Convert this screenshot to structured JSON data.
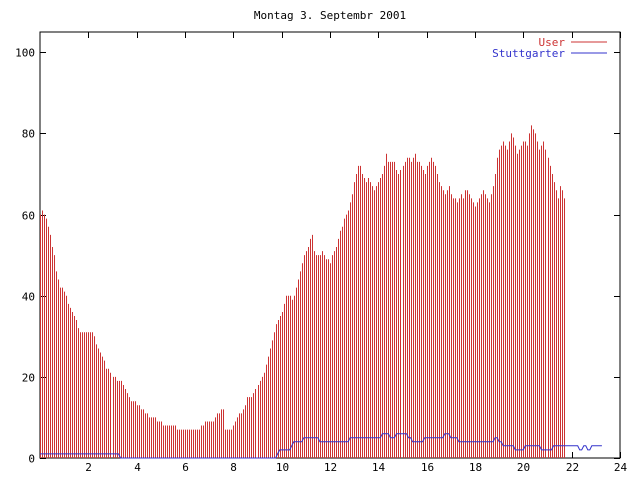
{
  "chart_data": {
    "type": "bar",
    "title": "Montag 3. Septembr 2001",
    "xlabel": "",
    "ylabel": "",
    "xlim": [
      0,
      24
    ],
    "ylim": [
      0,
      105
    ],
    "x_ticks": [
      2,
      4,
      6,
      8,
      10,
      12,
      14,
      16,
      18,
      20,
      22,
      24
    ],
    "y_ticks": [
      0,
      20,
      40,
      60,
      80,
      100
    ],
    "grid": false,
    "legend_position": "top-right",
    "sample_interval_minutes": 5,
    "series": [
      {
        "name": "User",
        "color": "#cc3333",
        "style": "impulses",
        "values": [
          60,
          61,
          60,
          59,
          57,
          55,
          52,
          50,
          46,
          44,
          42,
          42,
          41,
          40,
          38,
          37,
          36,
          35,
          34,
          32,
          31,
          31,
          31,
          31,
          31,
          31,
          31,
          30,
          28,
          27,
          26,
          25,
          24,
          22,
          22,
          21,
          20,
          20,
          19,
          19,
          19,
          18,
          17,
          16,
          15,
          14,
          14,
          14,
          13,
          13,
          12,
          12,
          11,
          11,
          10,
          10,
          10,
          10,
          9,
          9,
          9,
          8,
          8,
          8,
          8,
          8,
          8,
          8,
          7,
          7,
          7,
          7,
          7,
          7,
          7,
          7,
          7,
          7,
          7,
          7,
          8,
          8,
          9,
          9,
          9,
          9,
          9,
          10,
          11,
          11,
          12,
          12,
          7,
          7,
          7,
          7,
          8,
          9,
          10,
          11,
          11,
          12,
          13,
          15,
          15,
          15,
          16,
          17,
          18,
          19,
          20,
          21,
          23,
          25,
          27,
          29,
          31,
          33,
          34,
          35,
          36,
          38,
          40,
          40,
          40,
          39,
          40,
          42,
          44,
          46,
          48,
          50,
          51,
          52,
          54,
          55,
          51,
          50,
          50,
          50,
          51,
          50,
          49,
          49,
          48,
          50,
          51,
          52,
          54,
          56,
          57,
          59,
          60,
          61,
          63,
          65,
          68,
          70,
          72,
          72,
          70,
          69,
          68,
          69,
          68,
          67,
          66,
          67,
          68,
          69,
          70,
          72,
          75,
          73,
          73,
          73,
          73,
          71,
          70,
          71,
          72,
          73,
          74,
          74,
          73,
          74,
          75,
          73,
          73,
          72,
          71,
          70,
          72,
          73,
          74,
          73,
          72,
          70,
          68,
          67,
          66,
          65,
          66,
          67,
          65,
          64,
          64,
          63,
          64,
          65,
          64,
          66,
          66,
          65,
          64,
          63,
          62,
          63,
          64,
          65,
          66,
          65,
          64,
          63,
          65,
          67,
          70,
          74,
          76,
          77,
          78,
          77,
          76,
          78,
          80,
          79,
          77,
          75,
          76,
          77,
          78,
          78,
          77,
          80,
          82,
          81,
          80,
          78,
          76,
          77,
          78,
          76,
          74,
          72,
          70,
          68,
          66,
          64,
          67,
          66,
          64
        ]
      },
      {
        "name": "Stuttgarter",
        "color": "#3333cc",
        "style": "lines",
        "values": [
          1,
          1,
          1,
          1,
          1,
          1,
          1,
          1,
          1,
          1,
          1,
          1,
          1,
          1,
          1,
          1,
          1,
          1,
          1,
          1,
          1,
          1,
          1,
          1,
          1,
          1,
          1,
          1,
          1,
          1,
          1,
          1,
          1,
          1,
          1,
          1,
          1,
          1,
          1,
          1,
          0,
          0,
          0,
          0,
          0,
          0,
          0,
          0,
          0,
          0,
          0,
          0,
          0,
          0,
          0,
          0,
          0,
          0,
          0,
          0,
          0,
          0,
          0,
          0,
          0,
          0,
          0,
          0,
          0,
          0,
          0,
          0,
          0,
          0,
          0,
          0,
          0,
          0,
          0,
          0,
          0,
          0,
          0,
          0,
          0,
          0,
          0,
          0,
          0,
          0,
          0,
          0,
          0,
          0,
          0,
          0,
          0,
          0,
          0,
          0,
          0,
          0,
          0,
          0,
          0,
          0,
          0,
          0,
          0,
          0,
          0,
          0,
          0,
          0,
          0,
          0,
          0,
          0,
          1,
          2,
          2,
          2,
          2,
          2,
          2,
          3,
          4,
          4,
          4,
          4,
          4,
          5,
          5,
          5,
          5,
          5,
          5,
          5,
          5,
          4,
          4,
          4,
          4,
          4,
          4,
          4,
          4,
          4,
          4,
          4,
          4,
          4,
          4,
          4,
          5,
          5,
          5,
          5,
          5,
          5,
          5,
          5,
          5,
          5,
          5,
          5,
          5,
          5,
          5,
          5,
          6,
          6,
          6,
          6,
          5,
          5,
          5,
          6,
          6,
          6,
          6,
          6,
          6,
          5,
          5,
          4,
          4,
          4,
          4,
          4,
          4,
          5,
          5,
          5,
          5,
          5,
          5,
          5,
          5,
          5,
          5,
          6,
          6,
          6,
          5,
          5,
          5,
          5,
          4,
          4,
          4,
          4,
          4,
          4,
          4,
          4,
          4,
          4,
          4,
          4,
          4,
          4,
          4,
          4,
          4,
          4,
          5,
          5,
          4,
          4,
          3,
          3,
          3,
          3,
          3,
          3,
          2,
          2,
          2,
          2,
          2,
          3,
          3,
          3,
          3,
          3,
          3,
          3,
          3,
          2,
          2,
          2,
          2,
          2,
          2,
          3,
          3,
          3,
          3,
          3,
          3,
          3,
          3,
          3,
          3,
          3,
          3,
          3,
          2,
          2,
          3,
          3,
          2,
          2,
          3,
          3,
          3,
          3,
          3,
          3
        ]
      }
    ]
  }
}
